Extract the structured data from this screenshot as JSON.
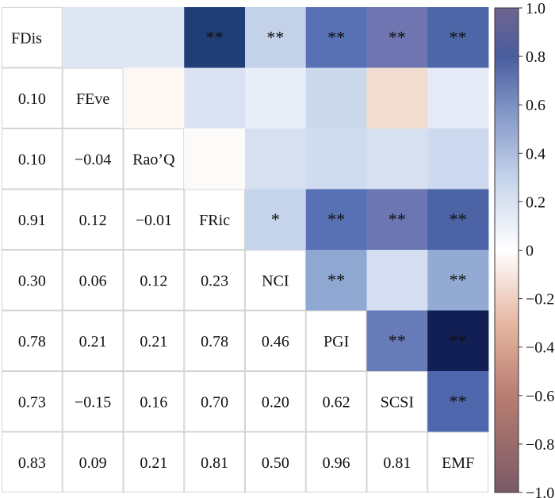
{
  "chart_data": {
    "type": "heatmap",
    "variables": [
      "FDis",
      "FEve",
      "Rao’Q",
      "FRic",
      "NCI",
      "PGI",
      "SCSI",
      "EMF"
    ],
    "lower_values": [
      [
        null,
        null,
        null,
        null,
        null,
        null,
        null,
        null
      ],
      [
        0.1,
        null,
        null,
        null,
        null,
        null,
        null,
        null
      ],
      [
        0.1,
        -0.04,
        null,
        null,
        null,
        null,
        null,
        null
      ],
      [
        0.91,
        0.12,
        -0.01,
        null,
        null,
        null,
        null,
        null
      ],
      [
        0.3,
        0.06,
        0.12,
        0.23,
        null,
        null,
        null,
        null
      ],
      [
        0.78,
        0.21,
        0.21,
        0.78,
        0.46,
        null,
        null,
        null
      ],
      [
        0.73,
        -0.15,
        0.16,
        0.7,
        0.2,
        0.62,
        null,
        null
      ],
      [
        0.83,
        0.09,
        0.21,
        0.81,
        0.5,
        0.96,
        0.81,
        null
      ]
    ],
    "lower_labels": [
      [
        "",
        "",
        "",
        "",
        "",
        "",
        "",
        ""
      ],
      [
        "0.10",
        "",
        "",
        "",
        "",
        "",
        "",
        ""
      ],
      [
        "0.10",
        "−0.04",
        "",
        "",
        "",
        "",
        "",
        ""
      ],
      [
        "0.91",
        "0.12",
        "−0.01",
        "",
        "",
        "",
        "",
        ""
      ],
      [
        "0.30",
        "0.06",
        "0.12",
        "0.23",
        "",
        "",
        "",
        ""
      ],
      [
        "0.78",
        "0.21",
        "0.21",
        "0.78",
        "0.46",
        "",
        "",
        ""
      ],
      [
        "0.73",
        "−0.15",
        "0.16",
        "0.70",
        "0.20",
        "0.62",
        "",
        ""
      ],
      [
        "0.83",
        "0.09",
        "0.21",
        "0.81",
        "0.50",
        "0.96",
        "0.81",
        ""
      ]
    ],
    "significance": [
      [
        "",
        "",
        "",
        "**",
        "**",
        "**",
        "**",
        "**"
      ],
      [
        "",
        "",
        "",
        "",
        "",
        "",
        "",
        ""
      ],
      [
        "",
        "",
        "",
        "",
        "",
        "",
        "",
        ""
      ],
      [
        "",
        "",
        "",
        "",
        "*",
        "**",
        "**",
        "**"
      ],
      [
        "",
        "",
        "",
        "",
        "",
        "**",
        "",
        "**"
      ],
      [
        "",
        "",
        "",
        "",
        "",
        "",
        "**",
        "**"
      ],
      [
        "",
        "",
        "",
        "",
        "",
        "",
        "",
        "**"
      ],
      [
        "",
        "",
        "",
        "",
        "",
        "",
        "",
        ""
      ]
    ],
    "colorbar": {
      "range": [
        -1.0,
        1.0
      ],
      "ticks": [
        1.0,
        0.8,
        0.6,
        0.4,
        0.2,
        0,
        -0.2,
        -0.4,
        -0.6,
        -0.8,
        -1.0
      ],
      "tick_labels": [
        "1.0",
        "0.8",
        "0.6",
        "0.4",
        "0.2",
        "0",
        "−0.2",
        "−0.4",
        "−0.6",
        "−0.8",
        "−1.0"
      ],
      "color_stops": [
        {
          "value": -1.0,
          "color": "#7a5a66"
        },
        {
          "value": -0.6,
          "color": "#b97d71"
        },
        {
          "value": -0.3,
          "color": "#e6b7a2"
        },
        {
          "value": 0.0,
          "color": "#ffffff"
        },
        {
          "value": 0.3,
          "color": "#c4d3ea"
        },
        {
          "value": 0.6,
          "color": "#7c8fc3"
        },
        {
          "value": 0.8,
          "color": "#4a5d9e"
        },
        {
          "value": 1.0,
          "color": "#6e6590"
        }
      ]
    },
    "cell_colors": {
      "0-1": "#dfe6f4",
      "0-2": "#dfe6f4",
      "0-3": "#1f3e78",
      "0-4": "#c3d2e9",
      "0-5": "#5870b4",
      "0-6": "#6e75b0",
      "0-7": "#4c66a8",
      "1-2": "#fdf8f4",
      "1-3": "#dbe3f3",
      "1-4": "#e8edf7",
      "1-5": "#ccd9ec",
      "1-6": "#f1dcd0",
      "1-7": "#e5ebf6",
      "2-3": "#fdfbfa",
      "2-4": "#d6e0f1",
      "2-5": "#cfdbee",
      "2-6": "#d6e0f1",
      "2-7": "#cdd9ee",
      "3-4": "#c6d4eb",
      "3-5": "#5871b5",
      "3-6": "#6b76b3",
      "3-7": "#4c63a6",
      "4-5": "#8fa8d1",
      "4-6": "#d5def0",
      "4-7": "#93abd2",
      "5-6": "#677cb9",
      "5-7": "#111f55",
      "6-7": "#4e66ab"
    }
  }
}
